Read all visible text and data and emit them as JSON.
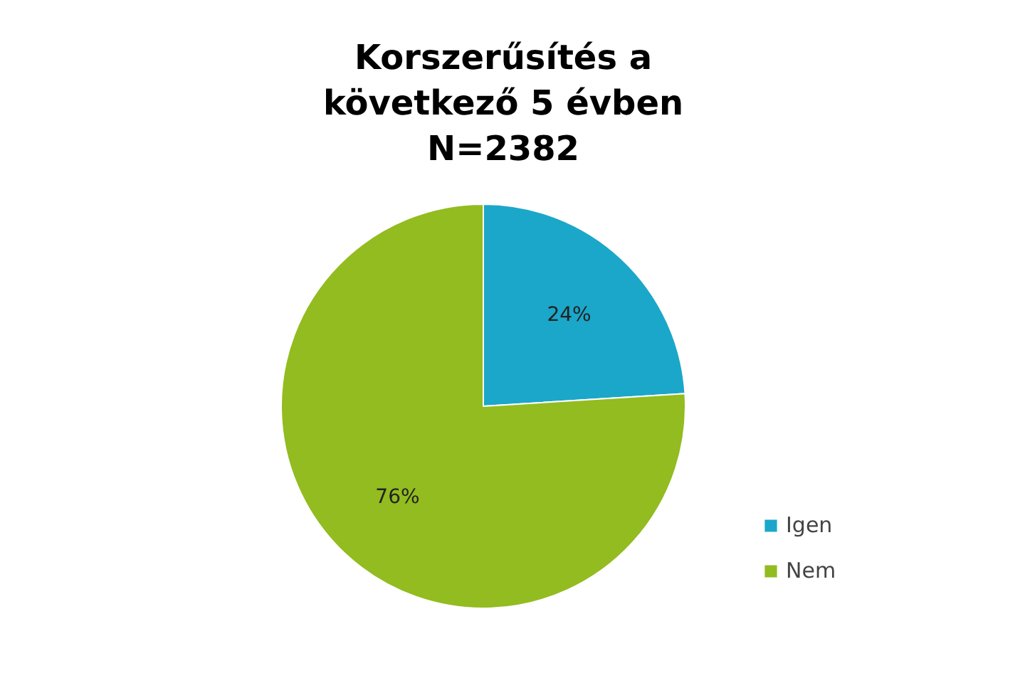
{
  "chart_data": {
    "type": "pie",
    "title": "Korszerűsítés a\nkövetkező 5 évben\nN=2382",
    "categories": [
      "Igen",
      "Nem"
    ],
    "values": [
      24,
      76
    ],
    "colors": [
      "#1ba7c9",
      "#92bc1f"
    ],
    "value_labels": [
      "24%",
      "76%"
    ],
    "legend": "right"
  }
}
